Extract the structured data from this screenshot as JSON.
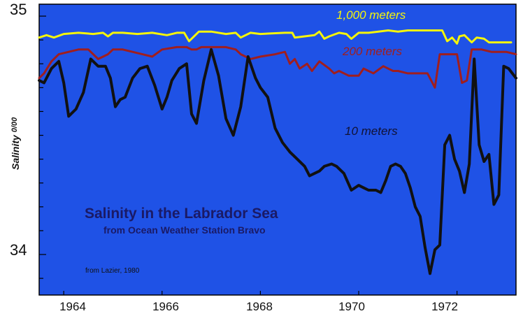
{
  "chart_data": {
    "type": "line",
    "title": "Salinity in the Labrador Sea",
    "subtitle": "from Ocean Weather Station Bravo",
    "source": "from Lazier, 1980",
    "ylabel": "Salinity ⁰/₀₀",
    "ylabel_main": "Salinity",
    "ylabel_unit": "0/00",
    "xlim": [
      1963.5,
      1973.2
    ],
    "ylim": [
      33.83,
      35.05
    ],
    "x_ticks": [
      1964,
      1966,
      1968,
      1970,
      1972
    ],
    "x_tick_labels": [
      "1964",
      "1966",
      "1968",
      "1970",
      "1972"
    ],
    "y_ticks": [
      34,
      35
    ],
    "y_tick_labels": [
      "34",
      "35"
    ],
    "y_minor_step": 0.1,
    "plot_background": "#1f52e6",
    "series": [
      {
        "name": "1,000 meters",
        "color": "#f5f50a",
        "label_x": 1971.0,
        "label_y": 35.0,
        "x": [
          1963.5,
          1963.65,
          1963.8,
          1964.0,
          1964.3,
          1964.6,
          1964.8,
          1964.9,
          1965.0,
          1965.2,
          1965.5,
          1965.8,
          1966.1,
          1966.3,
          1966.45,
          1966.55,
          1966.75,
          1967.0,
          1967.3,
          1967.5,
          1967.6,
          1967.8,
          1968.0,
          1968.5,
          1968.65,
          1968.7,
          1968.9,
          1969.1,
          1969.2,
          1969.3,
          1969.4,
          1969.6,
          1969.75,
          1969.85,
          1970.0,
          1970.2,
          1970.4,
          1970.6,
          1970.8,
          1971.0,
          1971.4,
          1971.7,
          1971.8,
          1971.9,
          1972.0,
          1972.05,
          1972.15,
          1972.3,
          1972.4,
          1972.55,
          1972.65,
          1972.8,
          1973.1
        ],
        "y": [
          34.91,
          34.92,
          34.91,
          34.925,
          34.93,
          34.925,
          34.93,
          34.915,
          34.93,
          34.93,
          34.925,
          34.93,
          34.92,
          34.93,
          34.93,
          34.895,
          34.935,
          34.935,
          34.925,
          34.93,
          34.91,
          34.93,
          34.925,
          34.93,
          34.93,
          34.91,
          34.915,
          34.92,
          34.935,
          34.905,
          34.915,
          34.93,
          34.925,
          34.905,
          34.93,
          34.93,
          34.935,
          34.94,
          34.935,
          34.94,
          34.94,
          34.94,
          34.895,
          34.91,
          34.885,
          34.915,
          34.92,
          34.89,
          34.91,
          34.905,
          34.89,
          34.89,
          34.89
        ]
      },
      {
        "name": "200 meters",
        "color": "#a01e1e",
        "label_x": 1970.2,
        "label_y": 34.87,
        "x": [
          1963.5,
          1963.6,
          1963.75,
          1963.9,
          1964.1,
          1964.3,
          1964.5,
          1964.6,
          1964.7,
          1964.9,
          1965.0,
          1965.2,
          1965.4,
          1965.6,
          1965.8,
          1966.0,
          1966.3,
          1966.5,
          1966.6,
          1966.7,
          1966.8,
          1967.0,
          1967.3,
          1967.5,
          1967.6,
          1967.8,
          1968.0,
          1968.3,
          1968.5,
          1968.6,
          1968.7,
          1968.8,
          1968.95,
          1969.05,
          1969.2,
          1969.4,
          1969.5,
          1969.6,
          1969.8,
          1970.0,
          1970.1,
          1970.3,
          1970.5,
          1970.7,
          1970.8,
          1971.0,
          1971.2,
          1971.4,
          1971.55,
          1971.65,
          1971.8,
          1972.0,
          1972.1,
          1972.2,
          1972.3,
          1972.5,
          1972.7,
          1973.0,
          1973.2
        ],
        "y": [
          34.74,
          34.76,
          34.81,
          34.84,
          34.85,
          34.86,
          34.86,
          34.84,
          34.82,
          34.84,
          34.86,
          34.86,
          34.85,
          34.84,
          34.83,
          34.86,
          34.87,
          34.87,
          34.86,
          34.86,
          34.87,
          34.87,
          34.87,
          34.86,
          34.84,
          34.82,
          34.83,
          34.84,
          34.85,
          34.8,
          34.82,
          34.78,
          34.8,
          34.77,
          34.81,
          34.78,
          34.76,
          34.77,
          34.75,
          34.75,
          34.78,
          34.76,
          34.79,
          34.77,
          34.77,
          34.76,
          34.76,
          34.76,
          34.7,
          34.84,
          34.84,
          34.84,
          34.72,
          34.73,
          34.86,
          34.86,
          34.85,
          34.85,
          34.84
        ]
      },
      {
        "name": "10 meters",
        "color": "#111111",
        "label_x": 1970.4,
        "label_y": 34.57,
        "x": [
          1963.5,
          1963.6,
          1963.75,
          1963.9,
          1964.0,
          1964.1,
          1964.25,
          1964.4,
          1964.55,
          1964.7,
          1964.85,
          1964.95,
          1965.05,
          1965.15,
          1965.25,
          1965.4,
          1965.55,
          1965.7,
          1965.85,
          1966.0,
          1966.1,
          1966.2,
          1966.35,
          1966.5,
          1966.6,
          1966.7,
          1966.85,
          1967.0,
          1967.15,
          1967.3,
          1967.45,
          1967.6,
          1967.75,
          1967.9,
          1968.0,
          1968.15,
          1968.3,
          1968.45,
          1968.6,
          1968.75,
          1968.9,
          1969.0,
          1969.1,
          1969.2,
          1969.3,
          1969.45,
          1969.55,
          1969.7,
          1969.85,
          1970.0,
          1970.1,
          1970.2,
          1970.35,
          1970.45,
          1970.55,
          1970.65,
          1970.75,
          1970.85,
          1970.95,
          1971.05,
          1971.15,
          1971.25,
          1971.35,
          1971.45,
          1971.55,
          1971.65,
          1971.75,
          1971.85,
          1971.95,
          1972.05,
          1972.15,
          1972.25,
          1972.35,
          1972.45,
          1972.55,
          1972.65,
          1972.75,
          1972.85,
          1972.95,
          1973.05,
          1973.2
        ],
        "y": [
          34.73,
          34.72,
          34.78,
          34.81,
          34.72,
          34.58,
          34.61,
          34.68,
          34.82,
          34.79,
          34.79,
          34.74,
          34.62,
          34.65,
          34.66,
          34.74,
          34.78,
          34.79,
          34.71,
          34.61,
          34.66,
          34.73,
          34.78,
          34.8,
          34.59,
          34.55,
          34.73,
          34.86,
          34.75,
          34.57,
          34.5,
          34.62,
          34.83,
          34.74,
          34.7,
          34.66,
          34.53,
          34.47,
          34.43,
          34.4,
          34.37,
          34.33,
          34.34,
          34.35,
          34.37,
          34.38,
          34.37,
          34.34,
          34.27,
          34.29,
          34.28,
          34.27,
          34.27,
          34.26,
          34.31,
          34.37,
          34.38,
          34.37,
          34.34,
          34.28,
          34.2,
          34.16,
          34.03,
          33.92,
          34.02,
          34.04,
          34.46,
          34.5,
          34.4,
          34.35,
          34.26,
          34.38,
          34.82,
          34.46,
          34.39,
          34.42,
          34.21,
          34.25,
          34.79,
          34.78,
          34.74
        ]
      }
    ]
  }
}
